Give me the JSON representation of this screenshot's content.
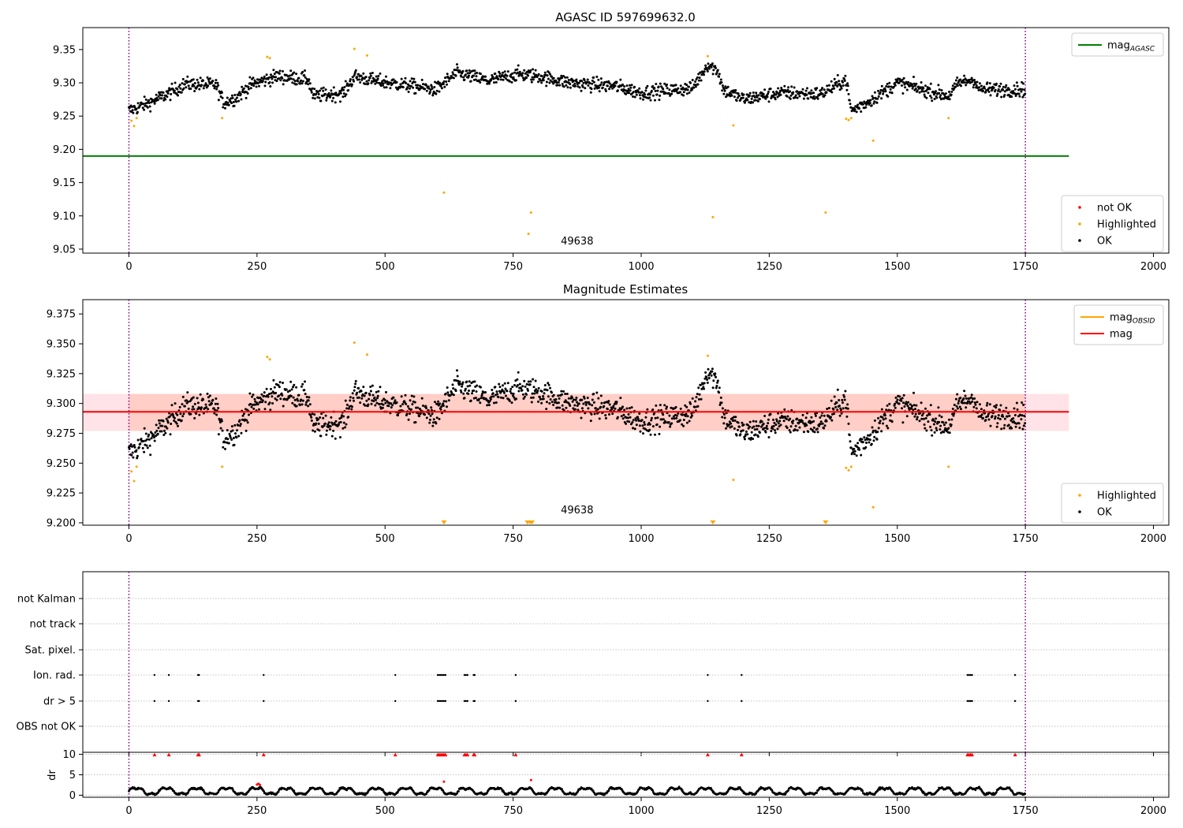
{
  "figure": {
    "colors": {
      "ok": "#000000",
      "highlighted": "#ffa500",
      "not_ok": "#ff0000",
      "agasc_line": "#008000",
      "mag_line": "#ff0000",
      "obsid_line": "#ffa500",
      "band_fill": "#ffc0cb",
      "band_inner": "#ffa07a",
      "vline": "#800080",
      "grid": "#b0b0b0"
    }
  },
  "chart_data": [
    {
      "type": "scatter",
      "title": "AGASC ID 597699632.0",
      "xlim": [
        -90,
        2030
      ],
      "ylim": [
        9.044,
        9.383
      ],
      "x_ticks": [
        0,
        250,
        500,
        750,
        1000,
        1250,
        1500,
        1750,
        2000
      ],
      "x_tick_labels": [
        "0",
        "250",
        "500",
        "750",
        "1000",
        "1250",
        "1500",
        "1750",
        "2000"
      ],
      "y_ticks": [
        9.05,
        9.1,
        9.15,
        9.2,
        9.25,
        9.3,
        9.35
      ],
      "y_tick_labels": [
        "9.05",
        "9.10",
        "9.15",
        "9.20",
        "9.25",
        "9.30",
        "9.35"
      ],
      "vlines": [
        0,
        1750
      ],
      "hline": {
        "name": "mag_AGASC",
        "y": 9.19,
        "x_range": [
          -90,
          1835
        ]
      },
      "annotation": {
        "text": "49638",
        "x": 875,
        "y": 9.057
      },
      "legend_top": {
        "position": "top-right",
        "entries": [
          {
            "label": "mag",
            "sub": "AGASC",
            "kind": "line",
            "color": "#008000"
          }
        ]
      },
      "legend_bottom": {
        "position": "bottom-right",
        "entries": [
          {
            "label": "not OK",
            "kind": "dot",
            "color": "#ff0000"
          },
          {
            "label": "Highlighted",
            "kind": "dot",
            "color": "#ffa500"
          },
          {
            "label": "OK",
            "kind": "dot",
            "color": "#000000"
          }
        ]
      },
      "trend_knots": [
        [
          0,
          9.258
        ],
        [
          40,
          9.27
        ],
        [
          80,
          9.285
        ],
        [
          110,
          9.298
        ],
        [
          170,
          9.297
        ],
        [
          185,
          9.27
        ],
        [
          210,
          9.278
        ],
        [
          240,
          9.298
        ],
        [
          290,
          9.31
        ],
        [
          350,
          9.305
        ],
        [
          360,
          9.28
        ],
        [
          420,
          9.285
        ],
        [
          440,
          9.31
        ],
        [
          480,
          9.303
        ],
        [
          600,
          9.29
        ],
        [
          640,
          9.315
        ],
        [
          700,
          9.303
        ],
        [
          760,
          9.313
        ],
        [
          800,
          9.31
        ],
        [
          860,
          9.3
        ],
        [
          950,
          9.295
        ],
        [
          1000,
          9.285
        ],
        [
          1100,
          9.292
        ],
        [
          1130,
          9.328
        ],
        [
          1150,
          9.318
        ],
        [
          1160,
          9.29
        ],
        [
          1200,
          9.275
        ],
        [
          1270,
          9.285
        ],
        [
          1350,
          9.283
        ],
        [
          1400,
          9.305
        ],
        [
          1410,
          9.258
        ],
        [
          1440,
          9.27
        ],
        [
          1500,
          9.3
        ],
        [
          1600,
          9.28
        ],
        [
          1620,
          9.3
        ],
        [
          1650,
          9.305
        ],
        [
          1660,
          9.29
        ],
        [
          1750,
          9.29
        ]
      ],
      "highlighted_points": [
        [
          5,
          9.243
        ],
        [
          10,
          9.235
        ],
        [
          15,
          9.247
        ],
        [
          182,
          9.247
        ],
        [
          270,
          9.339
        ],
        [
          275,
          9.337
        ],
        [
          440,
          9.351
        ],
        [
          465,
          9.341
        ],
        [
          615,
          9.135
        ],
        [
          780,
          9.073
        ],
        [
          785,
          9.105
        ],
        [
          1130,
          9.34
        ],
        [
          1140,
          9.098
        ],
        [
          1180,
          9.236
        ],
        [
          1360,
          9.105
        ],
        [
          1400,
          9.246
        ],
        [
          1405,
          9.244
        ],
        [
          1410,
          9.247
        ],
        [
          1453,
          9.213
        ],
        [
          1600,
          9.247
        ]
      ]
    },
    {
      "type": "scatter",
      "title": "Magnitude Estimates",
      "xlim": [
        -90,
        2030
      ],
      "ylim": [
        9.198,
        9.387
      ],
      "x_ticks": [
        0,
        250,
        500,
        750,
        1000,
        1250,
        1500,
        1750,
        2000
      ],
      "x_tick_labels": [
        "0",
        "250",
        "500",
        "750",
        "1000",
        "1250",
        "1500",
        "1750",
        "2000"
      ],
      "y_ticks": [
        9.2,
        9.225,
        9.25,
        9.275,
        9.3,
        9.325,
        9.35,
        9.375
      ],
      "y_tick_labels": [
        "9.200",
        "9.225",
        "9.250",
        "9.275",
        "9.300",
        "9.325",
        "9.350",
        "9.375"
      ],
      "vlines": [
        0,
        1750
      ],
      "mag": 9.293,
      "band": [
        9.277,
        9.308
      ],
      "x_range": [
        -90,
        1835
      ],
      "annotation": {
        "text": "49638",
        "x": 875,
        "y": 9.208
      },
      "legend_top": {
        "position": "top-right",
        "entries": [
          {
            "label": "mag",
            "sub": "OBSID",
            "kind": "line",
            "color": "#ffa500"
          },
          {
            "label": "mag",
            "kind": "line",
            "color": "#ff0000"
          }
        ]
      },
      "legend_bottom": {
        "position": "bottom-right",
        "entries": [
          {
            "label": "Highlighted",
            "kind": "dot",
            "color": "#ffa500"
          },
          {
            "label": "OK",
            "kind": "dot",
            "color": "#000000"
          }
        ]
      },
      "clipped_markers_x": [
        615,
        778,
        783,
        787,
        1140,
        1360
      ]
    },
    {
      "type": "scatter",
      "title": "",
      "xlim": [
        -90,
        2030
      ],
      "x_ticks": [
        0,
        250,
        500,
        750,
        1000,
        1250,
        1500,
        1750,
        2000
      ],
      "x_tick_labels": [
        "0",
        "250",
        "500",
        "750",
        "1000",
        "1250",
        "1500",
        "1750",
        "2000"
      ],
      "vlines": [
        0,
        1750
      ],
      "flag_rows": [
        "not Kalman",
        "not track",
        "Sat. pixel.",
        "Ion. rad.",
        "dr > 5",
        "OBS not OK"
      ],
      "flag_x": [
        50,
        78,
        135,
        137,
        263,
        520,
        603,
        606,
        609,
        612,
        615,
        618,
        655,
        658,
        661,
        673,
        675,
        755,
        1130,
        1196,
        1637,
        1640,
        1643,
        1646,
        1730
      ],
      "dr": {
        "ylabel": "dr",
        "ylim": [
          -0.5,
          10.5
        ],
        "y_ticks": [
          0,
          5,
          10
        ],
        "y_tick_labels": [
          "0",
          "5",
          "10"
        ],
        "outliers": [
          [
            250,
            2.6
          ],
          [
            253,
            2.8
          ],
          [
            256,
            2.5
          ],
          [
            615,
            3.3
          ],
          [
            785,
            3.7
          ]
        ]
      }
    }
  ]
}
